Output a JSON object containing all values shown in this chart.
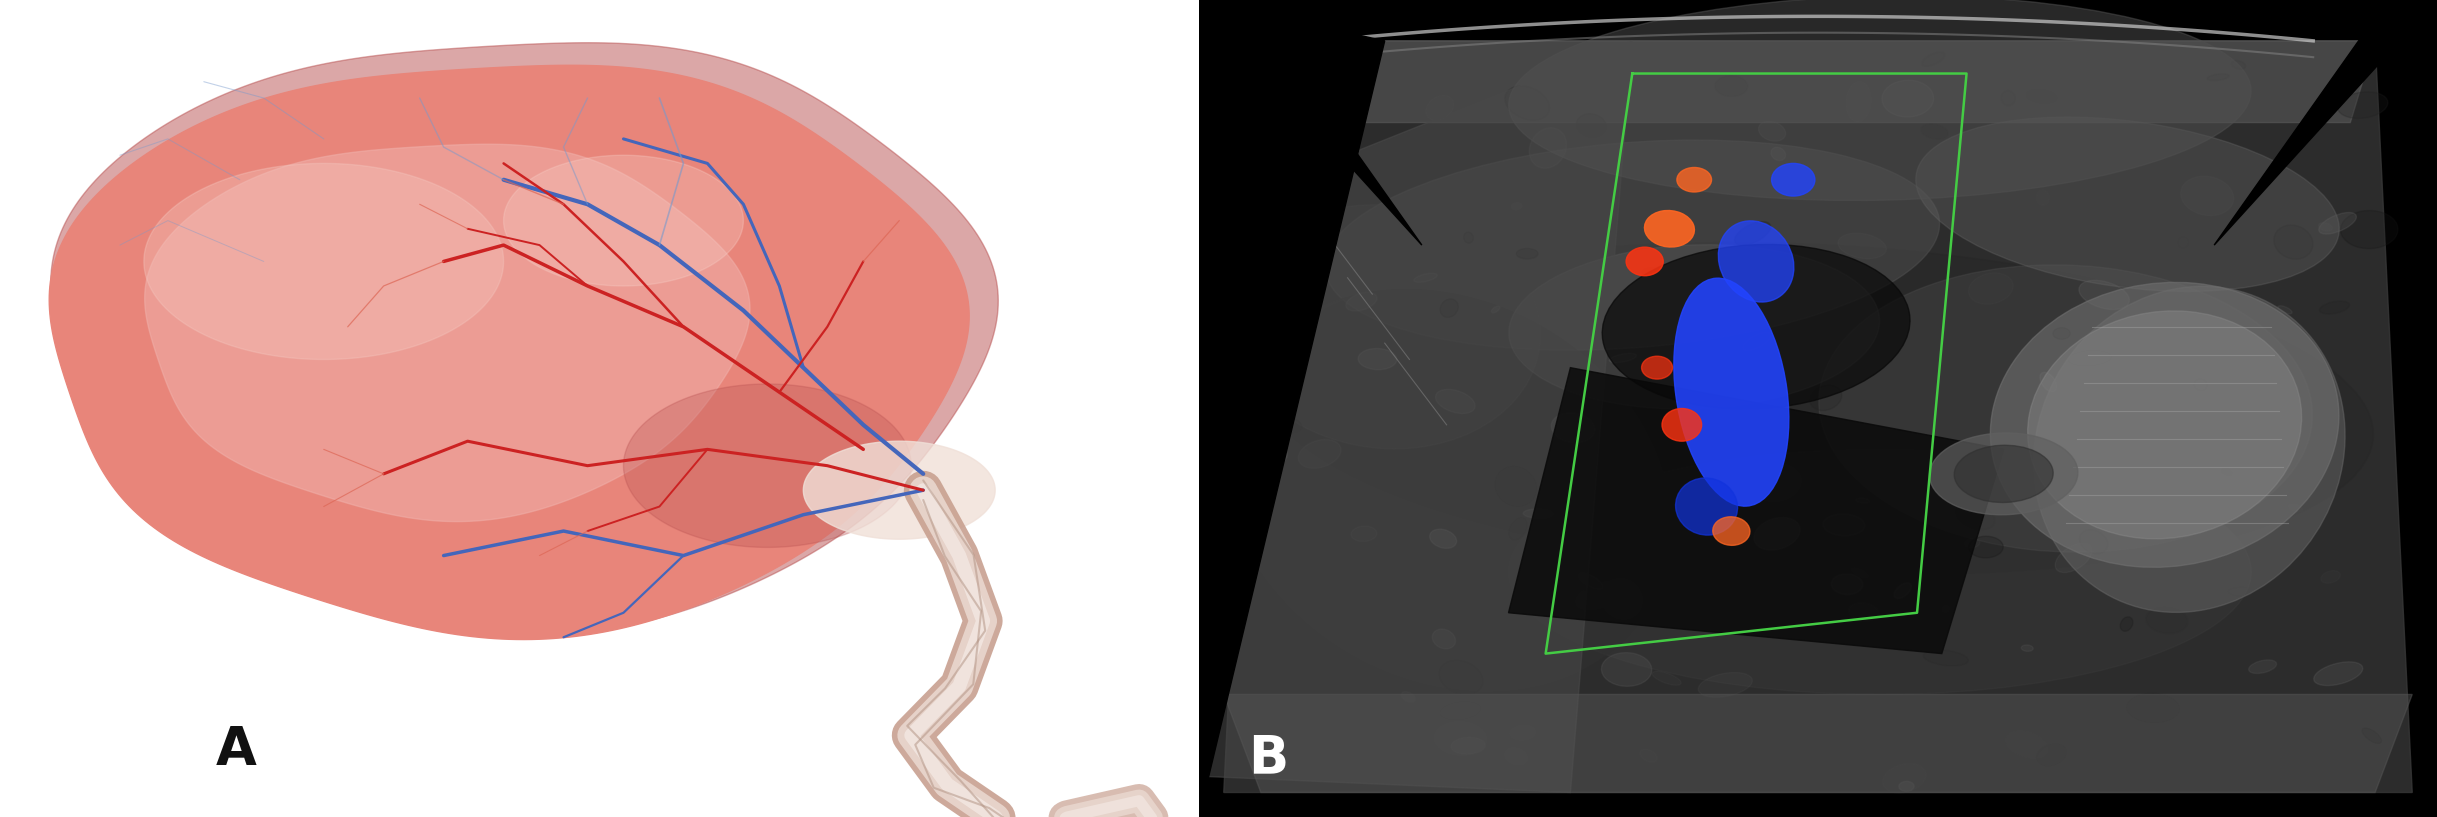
{
  "fig_width": 24.37,
  "fig_height": 8.17,
  "dpi": 100,
  "label_A": "A",
  "label_B": "B",
  "label_fontsize": 38,
  "label_A_color": "#111111",
  "label_B_color": "#ffffff",
  "background_left": "#ffffff",
  "background_right": "#000000",
  "placenta_outer_color": "#d46060",
  "placenta_main_color": "#e8857a",
  "placenta_light_color": "#f0b0aa",
  "placenta_highlight": "#f8ccc5",
  "placenta_dark_area": "#b85050",
  "vein_color_main": "#4466bb",
  "vein_color_light": "#7799cc",
  "artery_color_main": "#cc2222",
  "artery_color_light": "#dd6655",
  "cord_outer": "#c8a090",
  "cord_mid": "#edddd5",
  "cord_inner": "#f8f0ec",
  "green_box_color": "#44cc44",
  "blue_doppler": "#2244ff",
  "blue_doppler2": "#1133dd",
  "red_doppler": "#ff3311",
  "orange_doppler": "#ff6622"
}
